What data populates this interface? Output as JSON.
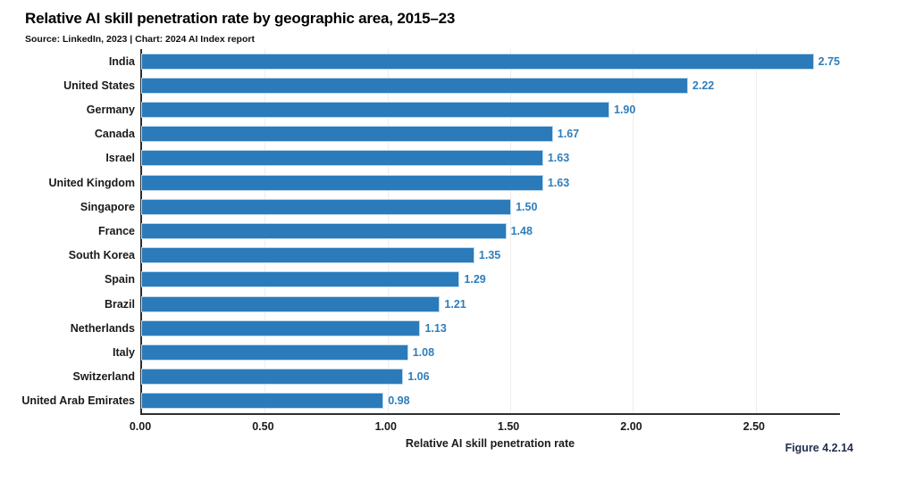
{
  "header": {
    "title": "Relative AI skill penetration rate by geographic area, 2015–23",
    "subtitle": "Source: LinkedIn, 2023 | Chart: 2024 AI Index report"
  },
  "chart_data": {
    "type": "bar",
    "orientation": "horizontal",
    "title": "Relative AI skill penetration rate by geographic area, 2015–23",
    "categories": [
      "India",
      "United States",
      "Germany",
      "Canada",
      "Israel",
      "United Kingdom",
      "Singapore",
      "France",
      "South Korea",
      "Spain",
      "Brazil",
      "Netherlands",
      "Italy",
      "Switzerland",
      "United Arab Emirates"
    ],
    "values": [
      2.75,
      2.22,
      1.9,
      1.67,
      1.63,
      1.63,
      1.5,
      1.48,
      1.35,
      1.29,
      1.21,
      1.13,
      1.08,
      1.06,
      0.98
    ],
    "value_labels": [
      "2.75",
      "2.22",
      "1.90",
      "1.67",
      "1.63",
      "1.63",
      "1.50",
      "1.48",
      "1.35",
      "1.29",
      "1.21",
      "1.13",
      "1.08",
      "1.06",
      "0.98"
    ],
    "xlabel": "Relative AI skill penetration rate",
    "ylabel": "",
    "xticks": [
      "0.00",
      "0.50",
      "1.00",
      "1.50",
      "2.00",
      "2.50"
    ],
    "xlim": [
      0,
      2.85
    ],
    "grid": "vertical-faint",
    "legend_position": "none",
    "bar_color": "#2b7bba",
    "value_label_color": "#2e7ebc"
  },
  "footer": {
    "figure_label": "Figure 4.2.14"
  }
}
